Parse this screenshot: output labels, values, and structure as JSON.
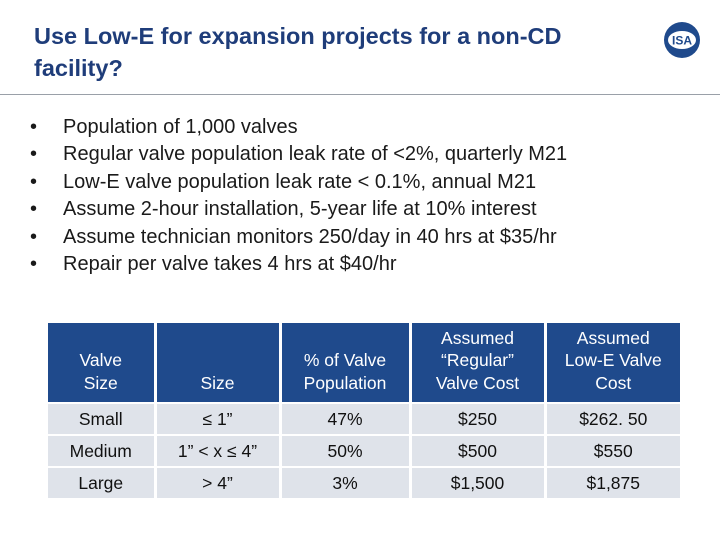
{
  "slide": {
    "title": "Use Low-E for expansion projects for a non-CD facility?",
    "logo_text": "ISA",
    "bullet_char": "•",
    "bullets": [
      "Population of 1,000 valves",
      "Regular valve population leak rate of <2%, quarterly M21",
      "Low-E valve population leak rate < 0.1%, annual M21",
      "Assume 2-hour installation, 5-year life at 10% interest",
      "Assume technician monitors 250/day in 40 hrs at $35/hr",
      "Repair per valve takes 4 hrs at $40/hr"
    ]
  },
  "table": {
    "headers": [
      [
        "Valve",
        "Size"
      ],
      [
        "Size"
      ],
      [
        "% of Valve",
        "Population"
      ],
      [
        "Assumed",
        "“Regular”",
        "Valve Cost"
      ],
      [
        "Assumed",
        "Low-E Valve",
        "Cost"
      ]
    ],
    "rows": [
      [
        "Small",
        "≤ 1”",
        "47%",
        "$250",
        "$262. 50"
      ],
      [
        "Medium",
        "1” <  x ≤ 4”",
        "50%",
        "$500",
        "$550"
      ],
      [
        "Large",
        "> 4”",
        "3%",
        "$1,500",
        "$1,875"
      ]
    ]
  },
  "colors": {
    "title": "#1f3d7a",
    "header_bg": "#1f4a8c",
    "cell_bg": "#dfe3ea"
  }
}
